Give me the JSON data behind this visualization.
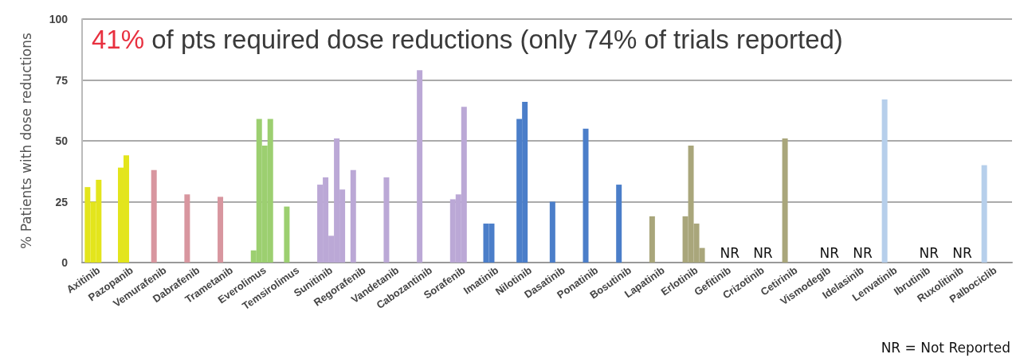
{
  "chart_data": {
    "type": "bar",
    "title": "41% of pts required dose reductions (only 74% of trials reported)",
    "ylabel": "% Patients with dose reductions",
    "categories": [
      "Axitinib",
      "Pazopanib",
      "Vemurafenib",
      "Dabrafenib",
      "Trametanib",
      "Everolimus",
      "Temsirolimus",
      "Sunitinib",
      "Regorafenib",
      "Vandetanib",
      "Cabozantinib",
      "Sorafenib",
      "Imatinib",
      "Nilotinib",
      "Dasatinib",
      "Ponatinib",
      "Bosutinib",
      "Lapatinib",
      "Erlotinib",
      "Gefitinib",
      "Crizotinib",
      "Cetirinib",
      "Vismodegib",
      "Idelasinib",
      "Lenvatinib",
      "Ibrutinib",
      "Ruxolitinib",
      "Palbociclib"
    ],
    "series": [
      {
        "values": [
          31,
          39,
          38,
          28,
          27,
          5,
          23,
          32,
          38,
          35,
          79,
          26,
          16,
          59,
          25,
          55,
          32,
          19,
          19,
          null,
          null,
          51,
          null,
          null,
          67,
          null,
          null,
          40
        ],
        "value_labels": [
          null,
          null,
          null,
          null,
          null,
          null,
          null,
          null,
          null,
          null,
          null,
          null,
          null,
          null,
          null,
          null,
          null,
          null,
          null,
          "NR",
          "NR",
          null,
          "NR",
          "NR",
          null,
          "NR",
          "NR",
          null
        ],
        "colors": [
          "#e3e51c",
          "#e3e51c",
          "#d8969f",
          "#d8969f",
          "#d8969f",
          "#9ccf70",
          "#9ccf70",
          "#bba8d6",
          "#bba8d6",
          "#bba8d6",
          "#bba8d6",
          "#bba8d6",
          "#4b7ec9",
          "#4b7ec9",
          "#4b7ec9",
          "#4b7ec9",
          "#4b7ec9",
          "#a9a67b",
          "#a9a67b",
          null,
          null,
          "#a9a67b",
          null,
          null,
          "#b6cfeb",
          null,
          null,
          "#b6cfeb"
        ]
      },
      {
        "values": [
          25,
          44,
          null,
          null,
          null,
          59,
          null,
          35,
          null,
          null,
          null,
          28,
          16,
          66,
          null,
          null,
          null,
          null,
          48,
          null,
          null,
          null,
          null,
          null,
          null,
          null,
          null,
          null
        ],
        "colors": [
          "#e3e51c",
          "#e3e51c",
          null,
          null,
          null,
          "#9ccf70",
          null,
          "#bba8d6",
          null,
          null,
          null,
          "#bba8d6",
          "#4b7ec9",
          "#4b7ec9",
          null,
          null,
          null,
          null,
          "#a9a67b",
          null,
          null,
          null,
          null,
          null,
          null,
          null,
          null,
          null
        ]
      },
      {
        "values": [
          34,
          null,
          null,
          null,
          null,
          48,
          null,
          11,
          null,
          null,
          null,
          64,
          null,
          null,
          null,
          null,
          null,
          null,
          16,
          null,
          null,
          null,
          null,
          null,
          null,
          null,
          null,
          null
        ],
        "colors": [
          "#e3e51c",
          null,
          null,
          null,
          null,
          "#9ccf70",
          null,
          "#bba8d6",
          null,
          null,
          null,
          "#bba8d6",
          null,
          null,
          null,
          null,
          null,
          null,
          "#a9a67b",
          null,
          null,
          null,
          null,
          null,
          null,
          null,
          null,
          null
        ]
      },
      {
        "values": [
          null,
          null,
          null,
          null,
          null,
          59,
          null,
          51,
          null,
          null,
          null,
          null,
          null,
          null,
          null,
          null,
          null,
          null,
          6,
          null,
          null,
          null,
          null,
          null,
          null,
          null,
          null,
          null
        ],
        "colors": [
          null,
          null,
          null,
          null,
          null,
          "#9ccf70",
          null,
          "#bba8d6",
          null,
          null,
          null,
          null,
          null,
          null,
          null,
          null,
          null,
          null,
          "#a9a67b",
          null,
          null,
          null,
          null,
          null,
          null,
          null,
          null,
          null
        ]
      },
      {
        "values": [
          null,
          null,
          null,
          null,
          null,
          null,
          null,
          30,
          null,
          null,
          null,
          null,
          null,
          null,
          null,
          null,
          null,
          null,
          null,
          null,
          null,
          null,
          null,
          null,
          null,
          null,
          null,
          null
        ],
        "colors": [
          null,
          null,
          null,
          null,
          null,
          null,
          null,
          "#bba8d6",
          null,
          null,
          null,
          null,
          null,
          null,
          null,
          null,
          null,
          null,
          null,
          null,
          null,
          null,
          null,
          null,
          null,
          null,
          null,
          null
        ]
      }
    ],
    "ylim": [
      0,
      100
    ],
    "yticks": [
      0,
      25,
      50,
      75,
      100
    ],
    "grid": "y",
    "annotations": [
      "NR = Not Reported"
    ]
  }
}
